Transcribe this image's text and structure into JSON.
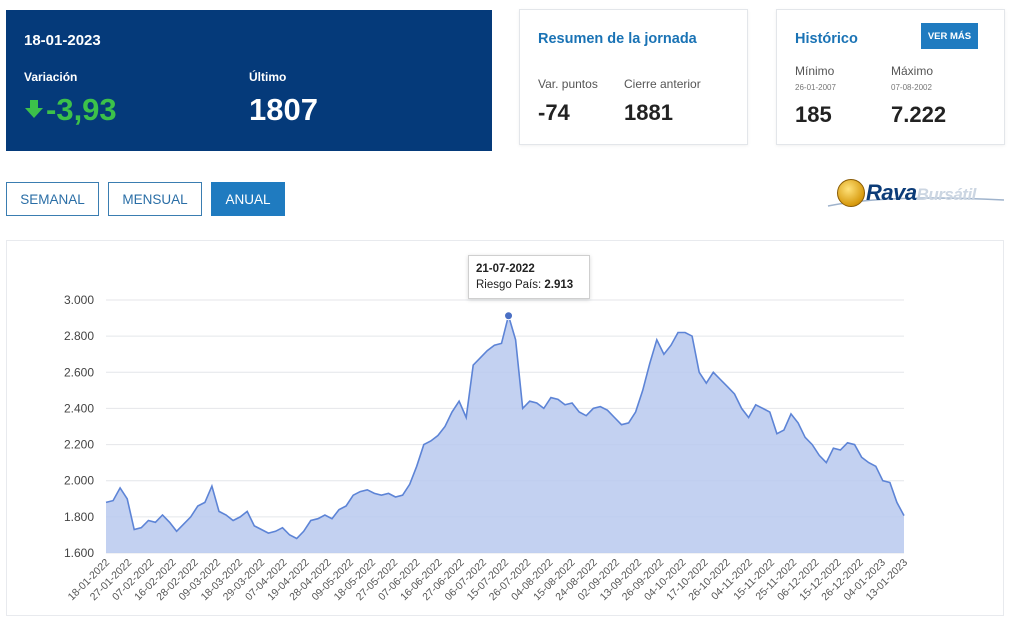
{
  "summary": {
    "date": "18-01-2023",
    "variation_label": "Variación",
    "variation_value": "-3,93",
    "last_label": "Último",
    "last_value": "1807"
  },
  "day": {
    "title": "Resumen de la jornada",
    "points_label": "Var. puntos",
    "points_value": "-74",
    "prev_label": "Cierre anterior",
    "prev_value": "1881"
  },
  "history": {
    "title": "Histórico",
    "more_label": "VER MÁS",
    "min_label": "Mínimo",
    "min_date": "26-01-2007",
    "min_value": "185",
    "max_label": "Máximo",
    "max_date": "07-08-2002",
    "max_value": "7.222"
  },
  "tabs": [
    {
      "label": "SEMANAL",
      "active": false
    },
    {
      "label": "MENSUAL",
      "active": false
    },
    {
      "label": "ANUAL",
      "active": true
    }
  ],
  "logo": {
    "brand": "Rava",
    "sub": "Bursátil"
  },
  "tooltip": {
    "date": "21-07-2022",
    "label": "Riesgo País:",
    "value": "2.913"
  },
  "colors": {
    "navy": "#053a7a",
    "accent": "#1f7bc0",
    "up_down_green": "#3cc14a",
    "series": "#5d84d6",
    "fill": "#b9c9ee"
  },
  "chart_data": {
    "type": "area",
    "title": "",
    "xlabel": "",
    "ylabel": "",
    "ylim": [
      1600,
      3000
    ],
    "y_ticks": [
      "1.600",
      "1.800",
      "2.000",
      "2.200",
      "2.400",
      "2.600",
      "2.800",
      "3.000"
    ],
    "x_ticks": [
      "18-01-2022",
      "27-01-2022",
      "07-02-2022",
      "16-02-2022",
      "28-02-2022",
      "09-03-2022",
      "18-03-2022",
      "29-03-2022",
      "07-04-2022",
      "19-04-2022",
      "28-04-2022",
      "09-05-2022",
      "18-05-2022",
      "27-05-2022",
      "07-06-2022",
      "16-06-2022",
      "27-06-2022",
      "06-07-2022",
      "15-07-2022",
      "26-07-2022",
      "04-08-2022",
      "15-08-2022",
      "24-08-2022",
      "02-09-2022",
      "13-09-2022",
      "26-09-2022",
      "04-10-2022",
      "17-10-2022",
      "26-10-2022",
      "04-11-2022",
      "15-11-2022",
      "25-11-2022",
      "06-12-2022",
      "15-12-2022",
      "26-12-2022",
      "04-01-2023",
      "13-01-2023"
    ],
    "grid": true,
    "series": [
      {
        "values": [
          1880,
          1890,
          1960,
          1900,
          1730,
          1740,
          1780,
          1770,
          1810,
          1770,
          1720,
          1760,
          1800,
          1860,
          1880,
          1970,
          1830,
          1810,
          1780,
          1800,
          1830,
          1750,
          1730,
          1710,
          1720,
          1740,
          1700,
          1680,
          1720,
          1780,
          1790,
          1810,
          1790,
          1840,
          1860,
          1920,
          1940,
          1950,
          1930,
          1920,
          1930,
          1910,
          1920,
          1980,
          2080,
          2200,
          2220,
          2250,
          2300,
          2380,
          2440,
          2350,
          2640,
          2680,
          2720,
          2750,
          2760,
          2913,
          2780,
          2400,
          2440,
          2430,
          2400,
          2460,
          2450,
          2420,
          2430,
          2380,
          2360,
          2400,
          2410,
          2390,
          2350,
          2310,
          2320,
          2380,
          2500,
          2650,
          2780,
          2700,
          2750,
          2820,
          2820,
          2800,
          2600,
          2540,
          2600,
          2560,
          2520,
          2480,
          2400,
          2350,
          2420,
          2400,
          2380,
          2260,
          2280,
          2370,
          2320,
          2240,
          2200,
          2140,
          2100,
          2180,
          2170,
          2210,
          2200,
          2130,
          2100,
          2080,
          2000,
          1990,
          1880,
          1807
        ]
      }
    ],
    "highlight_index": 57
  }
}
